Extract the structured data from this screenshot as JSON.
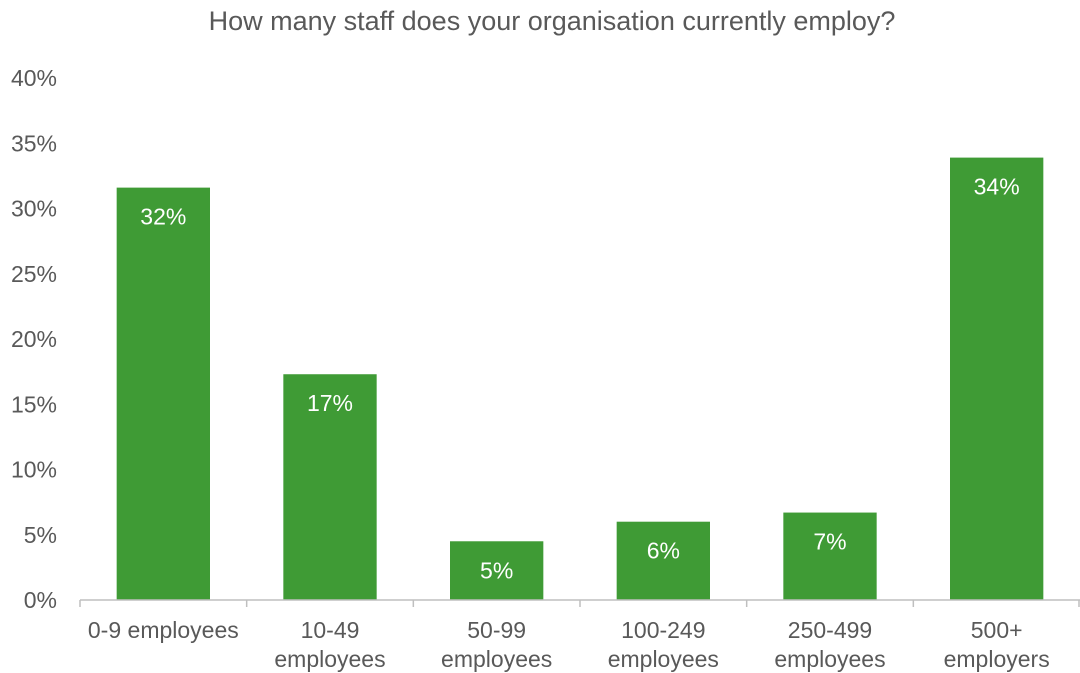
{
  "chart_data": {
    "type": "bar",
    "title": "How many staff does your organisation currently employ?",
    "categories": [
      [
        "0-9 employees"
      ],
      [
        "10-49",
        "employees"
      ],
      [
        "50-99",
        "employees"
      ],
      [
        "100-249",
        "employees"
      ],
      [
        "250-499",
        "employees"
      ],
      [
        "500+",
        "employers"
      ]
    ],
    "values": [
      31.6,
      17.3,
      4.5,
      6.0,
      6.7,
      33.9
    ],
    "data_labels": [
      "32%",
      "17%",
      "5%",
      "6%",
      "7%",
      "34%"
    ],
    "ylim": [
      0,
      40
    ],
    "yticks": [
      0,
      5,
      10,
      15,
      20,
      25,
      30,
      35,
      40
    ],
    "ytick_labels": [
      "0%",
      "5%",
      "10%",
      "15%",
      "20%",
      "25%",
      "30%",
      "35%",
      "40%"
    ],
    "xlabel": "",
    "ylabel": "",
    "grid": false,
    "legend": "none",
    "bar_color": "#3f9b35",
    "text_color": "#595959",
    "axis_color": "#bfbfbf",
    "data_label_color": "#ffffff"
  }
}
